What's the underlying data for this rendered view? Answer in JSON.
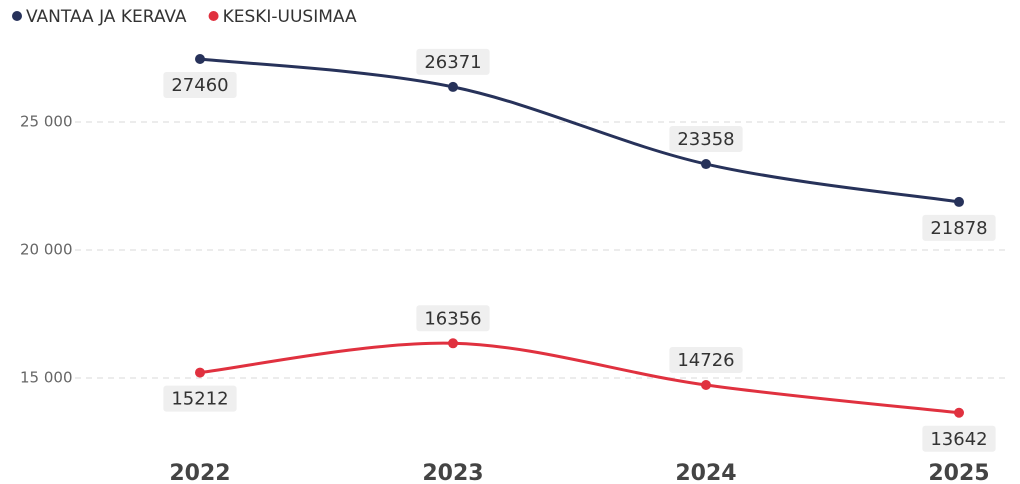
{
  "chart_data": {
    "type": "line",
    "categories": [
      "2022",
      "2023",
      "2024",
      "2025"
    ],
    "series": [
      {
        "name": "VANTAA JA KERAVA",
        "color": "#27325a",
        "values": [
          27460,
          26371,
          23358,
          21878
        ]
      },
      {
        "name": "KESKI-UUSIMAA",
        "color": "#e0313f",
        "values": [
          15212,
          16356,
          14726,
          13642
        ]
      }
    ],
    "ylim": [
      13000,
      28500
    ],
    "yticks": [
      {
        "value": 15000,
        "label": "15 000"
      },
      {
        "value": 20000,
        "label": "20 000"
      },
      {
        "value": 25000,
        "label": "25 000"
      }
    ],
    "grid": true
  }
}
